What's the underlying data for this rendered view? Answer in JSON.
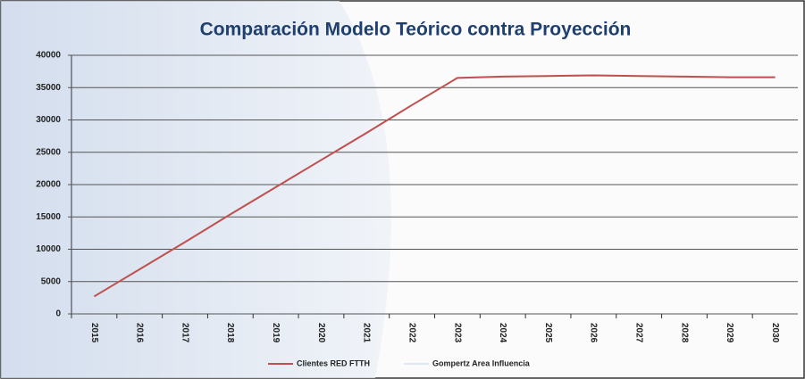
{
  "chart_data": {
    "type": "line",
    "title": "Comparación Modelo Teórico contra Proyección",
    "categories": [
      "2015",
      "2016",
      "2017",
      "2018",
      "2019",
      "2020",
      "2021",
      "2022",
      "2023",
      "2024",
      "2025",
      "2026",
      "2027",
      "2028",
      "2029",
      "2030"
    ],
    "series": [
      {
        "name": "Clientes RED FTTH",
        "color": "#c0504d",
        "values": [
          2700,
          6900,
          11100,
          15400,
          19600,
          23800,
          28000,
          32300,
          36500,
          36700,
          36800,
          36900,
          36800,
          36700,
          36600,
          36600
        ]
      },
      {
        "name": "Gompertz Area Influencia",
        "color": "#dfe7f3",
        "values": [
          2700,
          6900,
          11100,
          15400,
          19600,
          23800,
          28000,
          32300,
          36500,
          36700,
          36800,
          36900,
          36800,
          36700,
          36600,
          36600
        ]
      }
    ],
    "ylim": [
      0,
      40000
    ],
    "yticks": [
      0,
      5000,
      10000,
      15000,
      20000,
      25000,
      30000,
      35000,
      40000
    ],
    "grid": true
  }
}
